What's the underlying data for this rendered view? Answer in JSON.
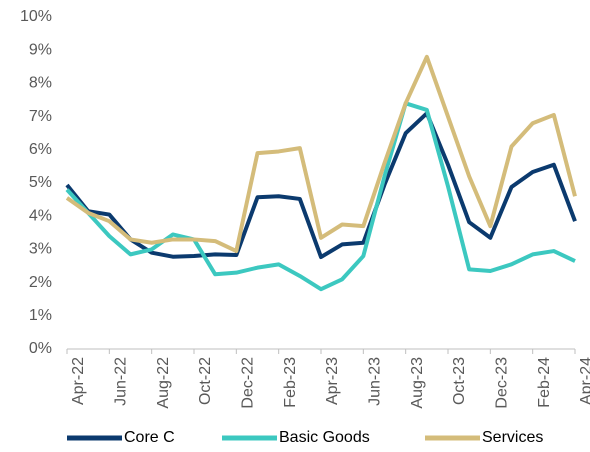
{
  "chart_data": {
    "type": "line",
    "categories": [
      "Apr-22",
      null,
      "Jun-22",
      null,
      "Aug-22",
      null,
      "Oct-22",
      null,
      "Dec-22",
      null,
      "Feb-23",
      null,
      "Apr-23",
      null,
      "Jun-23",
      null,
      "Aug-23",
      null,
      "Oct-23",
      null,
      "Dec-23",
      null,
      "Feb-24",
      null,
      "Apr-24"
    ],
    "series": [
      {
        "name": "Core C",
        "color": "#0b3a6e",
        "values": [
          4.94,
          4.15,
          4.05,
          3.3,
          2.9,
          2.78,
          2.8,
          2.85,
          2.83,
          4.57,
          4.6,
          4.52,
          2.77,
          3.15,
          3.2,
          4.95,
          6.5,
          7.1,
          5.55,
          3.82,
          3.35,
          4.88,
          5.33,
          5.55,
          3.85
        ]
      },
      {
        "name": "Basic Goods",
        "color": "#3cc8c0",
        "values": [
          4.8,
          4.1,
          3.4,
          2.85,
          3.0,
          3.45,
          3.3,
          2.25,
          2.3,
          2.45,
          2.55,
          2.2,
          1.8,
          2.1,
          2.8,
          5.2,
          7.4,
          7.2,
          4.9,
          2.4,
          2.35,
          2.55,
          2.85,
          2.95,
          2.65
        ]
      },
      {
        "name": "Services",
        "color": "#d4bc7a",
        "values": [
          4.55,
          4.1,
          3.85,
          3.3,
          3.2,
          3.3,
          3.3,
          3.25,
          2.95,
          5.9,
          5.95,
          6.05,
          3.35,
          3.75,
          3.7,
          5.6,
          7.4,
          8.8,
          7.0,
          5.2,
          3.7,
          6.1,
          6.8,
          7.05,
          4.6
        ]
      }
    ],
    "ylim": [
      0,
      10
    ],
    "yticks": [
      {
        "value": 0,
        "label": "0%"
      },
      {
        "value": 1,
        "label": "1%"
      },
      {
        "value": 2,
        "label": "2%"
      },
      {
        "value": 3,
        "label": "3%"
      },
      {
        "value": 4,
        "label": "4%"
      },
      {
        "value": 5,
        "label": "5%"
      },
      {
        "value": 6,
        "label": "6%"
      },
      {
        "value": 7,
        "label": "7%"
      },
      {
        "value": 8,
        "label": "8%"
      },
      {
        "value": 9,
        "label": "9%"
      },
      {
        "value": 10,
        "label": "10%"
      }
    ],
    "legend": "bottom"
  }
}
